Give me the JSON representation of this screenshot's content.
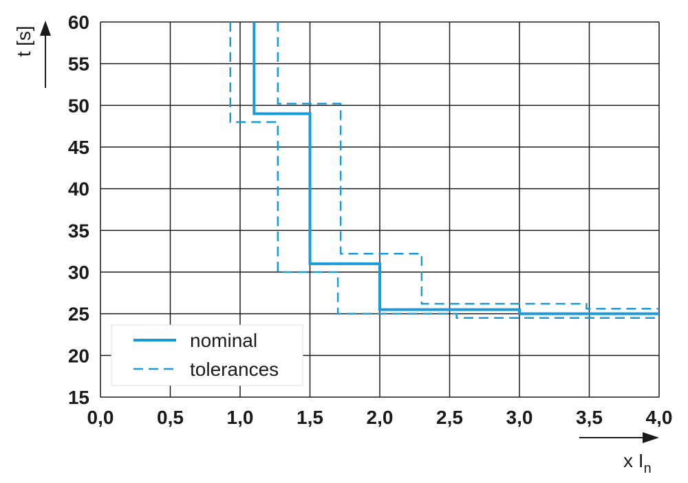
{
  "chart_data": {
    "type": "line",
    "title": "",
    "xlabel": "x In",
    "xlabel_main": "x I",
    "xlabel_sub": "n",
    "ylabel": "t [s]",
    "xlim": [
      0,
      4
    ],
    "ylim": [
      15,
      60
    ],
    "grid": true,
    "x_ticks": [
      0,
      0.5,
      1.0,
      1.5,
      2.0,
      2.5,
      3.0,
      3.5,
      4.0
    ],
    "x_tick_labels": [
      "0,0",
      "0,5",
      "1,0",
      "1,5",
      "2,0",
      "2,5",
      "3,0",
      "3,5",
      "4,0"
    ],
    "y_ticks": [
      15,
      20,
      25,
      30,
      35,
      40,
      45,
      50,
      55,
      60
    ],
    "y_tick_labels": [
      "15",
      "20",
      "25",
      "30",
      "35",
      "40",
      "45",
      "50",
      "55",
      "60"
    ],
    "legend": {
      "position": "bottom-left",
      "entries": [
        {
          "label": "nominal",
          "style": "solid"
        },
        {
          "label": "tolerances",
          "style": "dashed"
        }
      ]
    },
    "color": "#1a9ad6",
    "series": [
      {
        "name": "nominal",
        "style": "solid",
        "x": [
          1.1,
          1.1,
          1.5,
          1.5,
          2.0,
          2.0,
          3.0,
          3.0,
          4.0
        ],
        "y": [
          60,
          49,
          49,
          31,
          31,
          25.5,
          25.5,
          25,
          25
        ]
      },
      {
        "name": "tolerances (lower)",
        "style": "dashed",
        "x": [
          0.93,
          0.93,
          1.27,
          1.27,
          1.7,
          1.7,
          2.55,
          2.55,
          4.0
        ],
        "y": [
          60,
          48,
          48,
          30,
          30,
          25,
          25,
          24.5,
          24.5
        ]
      },
      {
        "name": "tolerances (upper)",
        "style": "dashed",
        "x": [
          1.27,
          1.27,
          1.72,
          1.72,
          2.3,
          2.3,
          3.48,
          3.48,
          4.0
        ],
        "y": [
          60,
          50.2,
          50.2,
          32.2,
          32.2,
          26.2,
          26.2,
          25.6,
          25.6
        ]
      }
    ]
  }
}
